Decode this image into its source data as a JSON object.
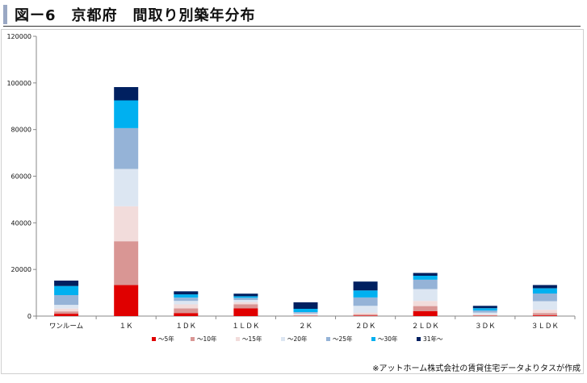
{
  "header": {
    "title": "図ー6　京都府　間取り別築年分布"
  },
  "credit": "※アットホーム株式会社の賃貸住宅データよりタスが作成",
  "chart_data": {
    "type": "bar",
    "stacked": true,
    "title": "図ー6　京都府　間取り別築年分布",
    "xlabel": "",
    "ylabel": "",
    "ylim": [
      0,
      120000
    ],
    "yticks": [
      0,
      20000,
      40000,
      60000,
      80000,
      100000,
      120000
    ],
    "grid": false,
    "legend_position": "bottom",
    "categories": [
      "ワンルーム",
      "１Ｋ",
      "１ＤＫ",
      "１ＬＤＫ",
      "２Ｋ",
      "２ＤＫ",
      "２ＬＤＫ",
      "３ＤＫ",
      "３ＬＤＫ"
    ],
    "series": [
      {
        "name": "～5年",
        "color": "#e00000",
        "values": [
          1000,
          13300,
          1300,
          3300,
          100,
          200,
          2100,
          100,
          300
        ]
      },
      {
        "name": "～10年",
        "color": "#d99694",
        "values": [
          1000,
          18800,
          2000,
          1800,
          200,
          500,
          2200,
          300,
          1000
        ]
      },
      {
        "name": "～15年",
        "color": "#f2dcdb",
        "values": [
          1200,
          15000,
          1700,
          900,
          300,
          700,
          2200,
          300,
          1400
        ]
      },
      {
        "name": "～20年",
        "color": "#dce6f2",
        "values": [
          1600,
          16000,
          1500,
          900,
          500,
          3000,
          5100,
          800,
          3700
        ]
      },
      {
        "name": "～25年",
        "color": "#95b3d7",
        "values": [
          4200,
          17500,
          1400,
          900,
          600,
          3600,
          4000,
          900,
          3300
        ]
      },
      {
        "name": "～30年",
        "color": "#00b0f0",
        "values": [
          3900,
          11900,
          1400,
          700,
          1400,
          3000,
          1700,
          1000,
          2200
        ]
      },
      {
        "name": "31年～",
        "color": "#002060",
        "values": [
          2300,
          5700,
          1300,
          1100,
          2800,
          3800,
          1200,
          1000,
          1400
        ]
      }
    ]
  }
}
